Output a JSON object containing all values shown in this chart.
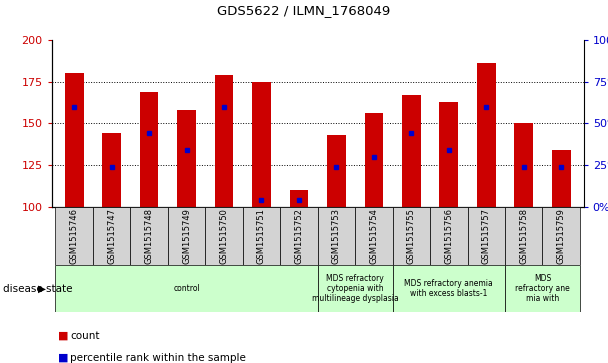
{
  "title": "GDS5622 / ILMN_1768049",
  "samples": [
    "GSM1515746",
    "GSM1515747",
    "GSM1515748",
    "GSM1515749",
    "GSM1515750",
    "GSM1515751",
    "GSM1515752",
    "GSM1515753",
    "GSM1515754",
    "GSM1515755",
    "GSM1515756",
    "GSM1515757",
    "GSM1515758",
    "GSM1515759"
  ],
  "counts": [
    180,
    144,
    169,
    158,
    179,
    175,
    110,
    143,
    156,
    167,
    163,
    186,
    150,
    134
  ],
  "percentile_ranks": [
    60,
    24,
    44,
    34,
    60,
    4,
    4,
    24,
    30,
    44,
    34,
    60,
    24,
    24
  ],
  "ylim_left": [
    100,
    200
  ],
  "ylim_right": [
    0,
    100
  ],
  "yticks_left": [
    100,
    125,
    150,
    175,
    200
  ],
  "yticks_right": [
    0,
    25,
    50,
    75,
    100
  ],
  "bar_color": "#cc0000",
  "percentile_color": "#0000cc",
  "disease_groups": [
    {
      "label": "control",
      "start": 0,
      "end": 7,
      "color": "#ccffcc"
    },
    {
      "label": "MDS refractory\ncytopenia with\nmultilineage dysplasia",
      "start": 7,
      "end": 9,
      "color": "#ccffcc"
    },
    {
      "label": "MDS refractory anemia\nwith excess blasts-1",
      "start": 9,
      "end": 12,
      "color": "#ccffcc"
    },
    {
      "label": "MDS\nrefractory ane\nmia with",
      "start": 12,
      "end": 14,
      "color": "#ccffcc"
    }
  ],
  "disease_state_label": "disease state",
  "legend_count_label": "count",
  "legend_percentile_label": "percentile rank within the sample",
  "bar_width": 0.5,
  "fig_bg": "#ffffff",
  "plot_bg": "#ffffff",
  "sample_cell_color": "#d3d3d3",
  "grid_color": "#000000"
}
